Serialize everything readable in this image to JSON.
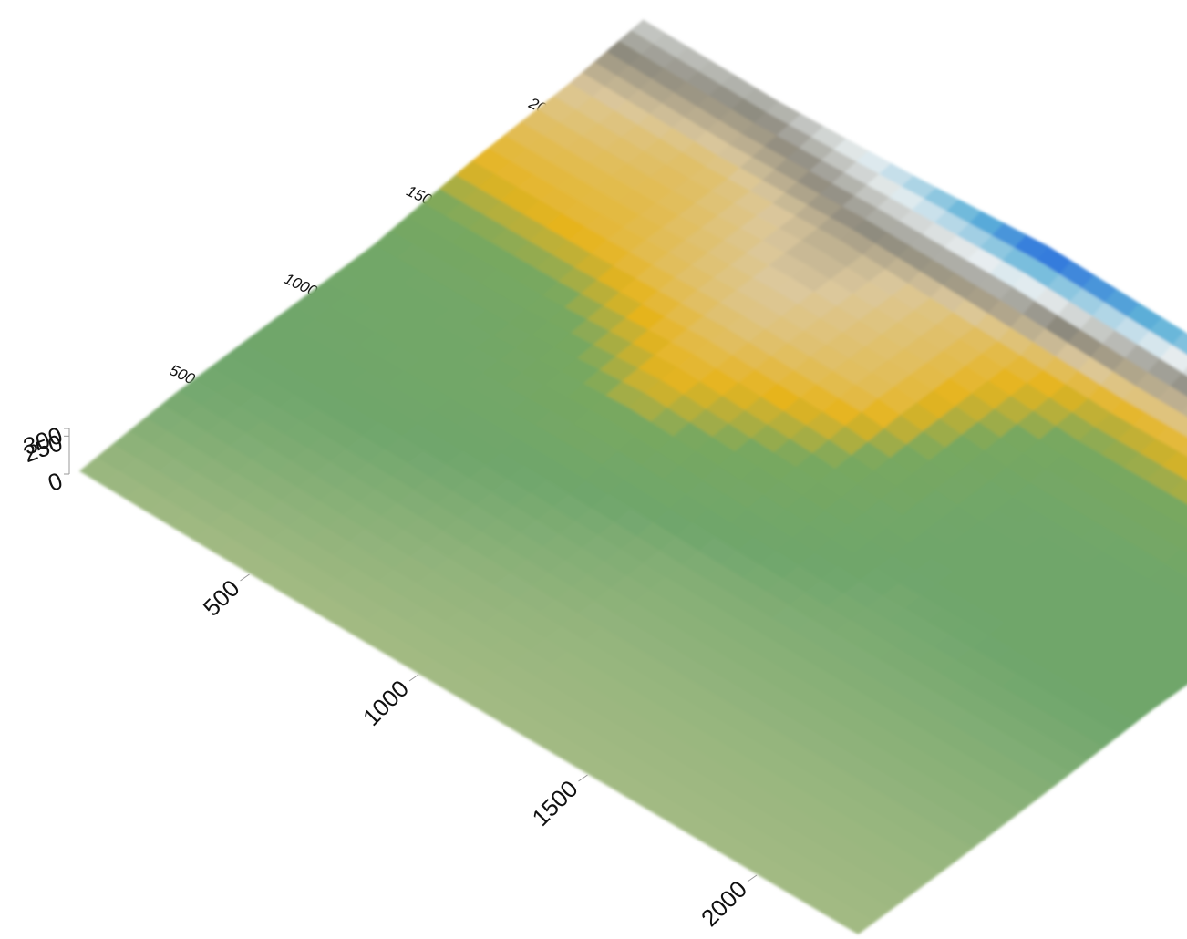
{
  "chart_data": {
    "type": "surface",
    "x": [
      0,
      400,
      800,
      1200,
      1600,
      2000,
      2300
    ],
    "y": [
      0,
      400,
      800,
      1200,
      1600,
      2000,
      2300
    ],
    "z": [
      [
        20,
        10,
        10,
        10,
        10,
        10,
        10
      ],
      [
        80,
        60,
        40,
        30,
        30,
        30,
        30
      ],
      [
        100,
        110,
        90,
        60,
        60,
        60,
        60
      ],
      [
        120,
        130,
        200,
        150,
        90,
        100,
        100
      ],
      [
        210,
        220,
        250,
        230,
        110,
        100,
        100
      ],
      [
        260,
        240,
        280,
        240,
        200,
        220,
        150
      ],
      [
        330,
        320,
        360,
        420,
        390,
        330,
        300
      ]
    ],
    "colorscale": [
      [
        0,
        "#aabd86"
      ],
      [
        90,
        "#6fa66c"
      ],
      [
        170,
        "#78a860"
      ],
      [
        210,
        "#e6b41e"
      ],
      [
        260,
        "#dcc89c"
      ],
      [
        300,
        "#8d8a7e"
      ],
      [
        340,
        "#e8eef0"
      ],
      [
        380,
        "#5fb2d8"
      ],
      [
        420,
        "#1552e0"
      ]
    ],
    "xlim": [
      0,
      2300
    ],
    "ylim": [
      0,
      2300
    ],
    "zlim": [
      0,
      300
    ],
    "xticks": [
      500,
      1000,
      1500,
      2000
    ],
    "yticks": [
      500,
      1000,
      1500,
      2000
    ],
    "zticks": [
      0,
      250,
      300
    ]
  }
}
